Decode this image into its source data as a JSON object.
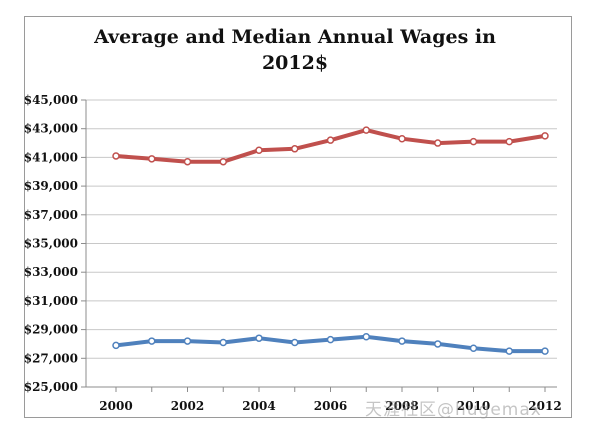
{
  "chart_data": {
    "type": "line",
    "title": "Average and Median Annual Wages in 2012$",
    "xlabel": "",
    "ylabel": "",
    "x": [
      2000,
      2001,
      2002,
      2003,
      2004,
      2005,
      2006,
      2007,
      2008,
      2009,
      2010,
      2011,
      2012
    ],
    "x_tick_labels": [
      "2000",
      "2002",
      "2004",
      "2006",
      "2008",
      "2010",
      "2012"
    ],
    "y_tick_labels": [
      "$45,000",
      "$43,000",
      "$41,000",
      "$39,000",
      "$37,000",
      "$35,000",
      "$33,000",
      "$31,000",
      "$29,000",
      "$27,000",
      "$25,000"
    ],
    "ylim": [
      25000,
      45000
    ],
    "y_tick_step": 2000,
    "grid": true,
    "legend": false,
    "series": [
      {
        "color": "#c0504d",
        "values": [
          41100,
          40900,
          40700,
          40700,
          41500,
          41600,
          42200,
          42900,
          42300,
          42000,
          42100,
          42100,
          42500
        ]
      },
      {
        "color": "#4f81bd",
        "values": [
          27900,
          28200,
          28200,
          28100,
          28400,
          28100,
          28300,
          28500,
          28200,
          28000,
          27700,
          27500,
          27500
        ]
      }
    ]
  },
  "watermark": "天涯社区@hugemax"
}
